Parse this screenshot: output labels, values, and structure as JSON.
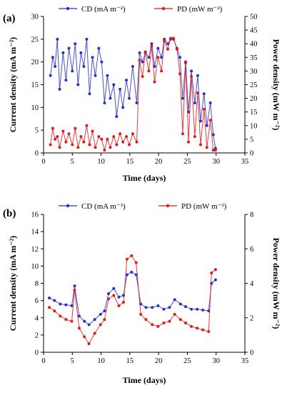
{
  "colors": {
    "cd": "#2633c4",
    "pd": "#e01a1a",
    "axis": "#000000"
  },
  "chart_data": [
    {
      "panel": "(a)",
      "type": "line",
      "xlabel": "Time (days)",
      "ylabel_left": "Current density (mA m⁻²)",
      "ylabel_right": "Power density (mW m⁻²)",
      "xlim": [
        0,
        35
      ],
      "ylim_left": [
        0,
        30
      ],
      "ylim_right": [
        0,
        50
      ],
      "xticks": [
        "0",
        "5",
        "10",
        "15",
        "20",
        "25",
        "30",
        "35"
      ],
      "yticks_left": [
        "0",
        "5",
        "10",
        "15",
        "20",
        "25",
        "30"
      ],
      "yticks_right": [
        "0",
        "5",
        "10",
        "15",
        "20",
        "25",
        "30",
        "35",
        "40",
        "45",
        "50"
      ],
      "legend": [
        {
          "label": "CD (mA m⁻²)",
          "axis": "left"
        },
        {
          "label": "PD (mW m⁻²)",
          "axis": "right"
        }
      ],
      "series": [
        {
          "name": "CD (mA m⁻²)",
          "axis": "left",
          "x": [
            1.2,
            1.6,
            2.0,
            2.4,
            2.8,
            3.4,
            3.9,
            4.4,
            5.0,
            5.5,
            6.0,
            6.5,
            7.0,
            7.5,
            8.0,
            8.5,
            9.0,
            9.6,
            10.1,
            10.6,
            11.1,
            11.6,
            12.2,
            12.7,
            13.3,
            13.8,
            14.4,
            14.9,
            15.5,
            16.2,
            16.7,
            17.2,
            17.7,
            18.3,
            18.8,
            19.3,
            19.9,
            20.5,
            21.0,
            21.6,
            22.1,
            22.6,
            23.2,
            23.7,
            24.2,
            24.7,
            25.2,
            25.7,
            26.3,
            26.8,
            27.3,
            27.9,
            28.4,
            29.0,
            29.5,
            29.9
          ],
          "y": [
            17,
            21,
            19,
            25,
            14,
            22,
            16,
            23,
            18,
            24,
            15,
            22,
            19,
            25,
            13,
            21,
            17,
            23,
            20,
            11,
            17,
            12,
            15,
            8,
            14,
            10,
            16,
            12,
            19,
            11,
            22,
            20,
            22,
            21,
            24,
            19,
            23,
            21,
            25,
            24,
            25,
            25,
            23,
            21,
            12,
            20,
            9,
            18,
            11,
            17,
            7,
            13,
            6,
            11,
            4,
            1
          ]
        },
        {
          "name": "PD (mW m⁻²)",
          "axis": "right",
          "x": [
            1.2,
            1.6,
            2.0,
            2.4,
            2.8,
            3.4,
            3.9,
            4.4,
            5.0,
            5.5,
            6.0,
            6.5,
            7.0,
            7.5,
            8.0,
            8.5,
            9.0,
            9.6,
            10.1,
            10.6,
            11.1,
            11.6,
            12.2,
            12.7,
            13.3,
            13.8,
            14.4,
            14.9,
            15.5,
            16.2,
            16.7,
            17.2,
            17.7,
            18.3,
            18.8,
            19.3,
            19.9,
            20.5,
            21.0,
            21.6,
            22.1,
            22.6,
            23.2,
            23.7,
            24.2,
            24.7,
            25.2,
            25.7,
            26.3,
            26.8,
            27.3,
            27.9,
            28.4,
            29.0,
            29.5,
            29.9
          ],
          "y": [
            3,
            9,
            5,
            6,
            2,
            8,
            4,
            7,
            3,
            9,
            2,
            6,
            4,
            10,
            3,
            8,
            2,
            6,
            5,
            1,
            5,
            2,
            6,
            3,
            7,
            4,
            6,
            3,
            7,
            4,
            34,
            28,
            37,
            30,
            39,
            26,
            35,
            30,
            41,
            38,
            42,
            42,
            38,
            29,
            7,
            33,
            4,
            28,
            6,
            22,
            3,
            16,
            2,
            12,
            1,
            1
          ]
        }
      ]
    },
    {
      "panel": "(b)",
      "type": "line",
      "xlabel": "Time (days)",
      "ylabel_left": "Current density (mA m⁻²)",
      "ylabel_right": "Power density (mW m⁻²)",
      "xlim": [
        0,
        35
      ],
      "ylim_left": [
        0,
        16
      ],
      "ylim_right": [
        0,
        8
      ],
      "xticks": [
        "0",
        "5",
        "10",
        "15",
        "20",
        "25",
        "30",
        "35"
      ],
      "yticks_left": [
        "0",
        "2",
        "4",
        "6",
        "8",
        "10",
        "12",
        "14",
        "16"
      ],
      "yticks_right": [
        "0",
        "2",
        "4",
        "6",
        "8"
      ],
      "legend": [
        {
          "label": "CD (mA m⁻²)",
          "axis": "left"
        },
        {
          "label": "PD (mW m⁻²)",
          "axis": "right"
        }
      ],
      "series": [
        {
          "name": "CD (mA m⁻²)",
          "axis": "left",
          "x": [
            1.0,
            1.9,
            2.9,
            3.9,
            4.9,
            5.4,
            6.2,
            7.1,
            7.9,
            8.9,
            9.9,
            10.6,
            11.3,
            12.2,
            13.1,
            13.9,
            14.5,
            15.3,
            16.1,
            16.9,
            17.8,
            18.9,
            19.9,
            20.9,
            21.9,
            22.8,
            23.8,
            24.7,
            25.7,
            26.7,
            27.7,
            28.7,
            29.2,
            29.9
          ],
          "y": [
            6.3,
            6.0,
            5.6,
            5.5,
            5.4,
            7.7,
            4.2,
            3.6,
            3.2,
            3.8,
            4.4,
            4.8,
            6.8,
            7.4,
            6.4,
            6.6,
            9.0,
            9.3,
            9.0,
            5.6,
            5.2,
            5.2,
            5.4,
            5.0,
            5.2,
            6.1,
            5.6,
            5.3,
            5.0,
            5.0,
            4.9,
            4.8,
            8.0,
            8.4
          ]
        },
        {
          "name": "PD (mW m⁻²)",
          "axis": "right",
          "x": [
            1.0,
            1.9,
            2.9,
            3.9,
            4.9,
            5.4,
            6.2,
            7.1,
            7.9,
            8.9,
            9.9,
            10.6,
            11.3,
            12.2,
            13.1,
            13.9,
            14.5,
            15.3,
            16.1,
            16.9,
            17.8,
            18.9,
            19.9,
            20.9,
            21.9,
            22.8,
            23.8,
            24.7,
            25.7,
            26.7,
            27.7,
            28.7,
            29.2,
            29.9
          ],
          "y": [
            2.6,
            2.4,
            2.1,
            1.9,
            1.8,
            3.6,
            1.4,
            0.9,
            0.5,
            1.1,
            1.6,
            1.9,
            3.1,
            3.3,
            2.7,
            2.9,
            5.4,
            5.6,
            5.2,
            2.2,
            1.9,
            1.6,
            1.5,
            1.7,
            1.8,
            2.2,
            1.9,
            1.7,
            1.5,
            1.4,
            1.3,
            1.2,
            4.6,
            4.8
          ]
        }
      ]
    }
  ]
}
